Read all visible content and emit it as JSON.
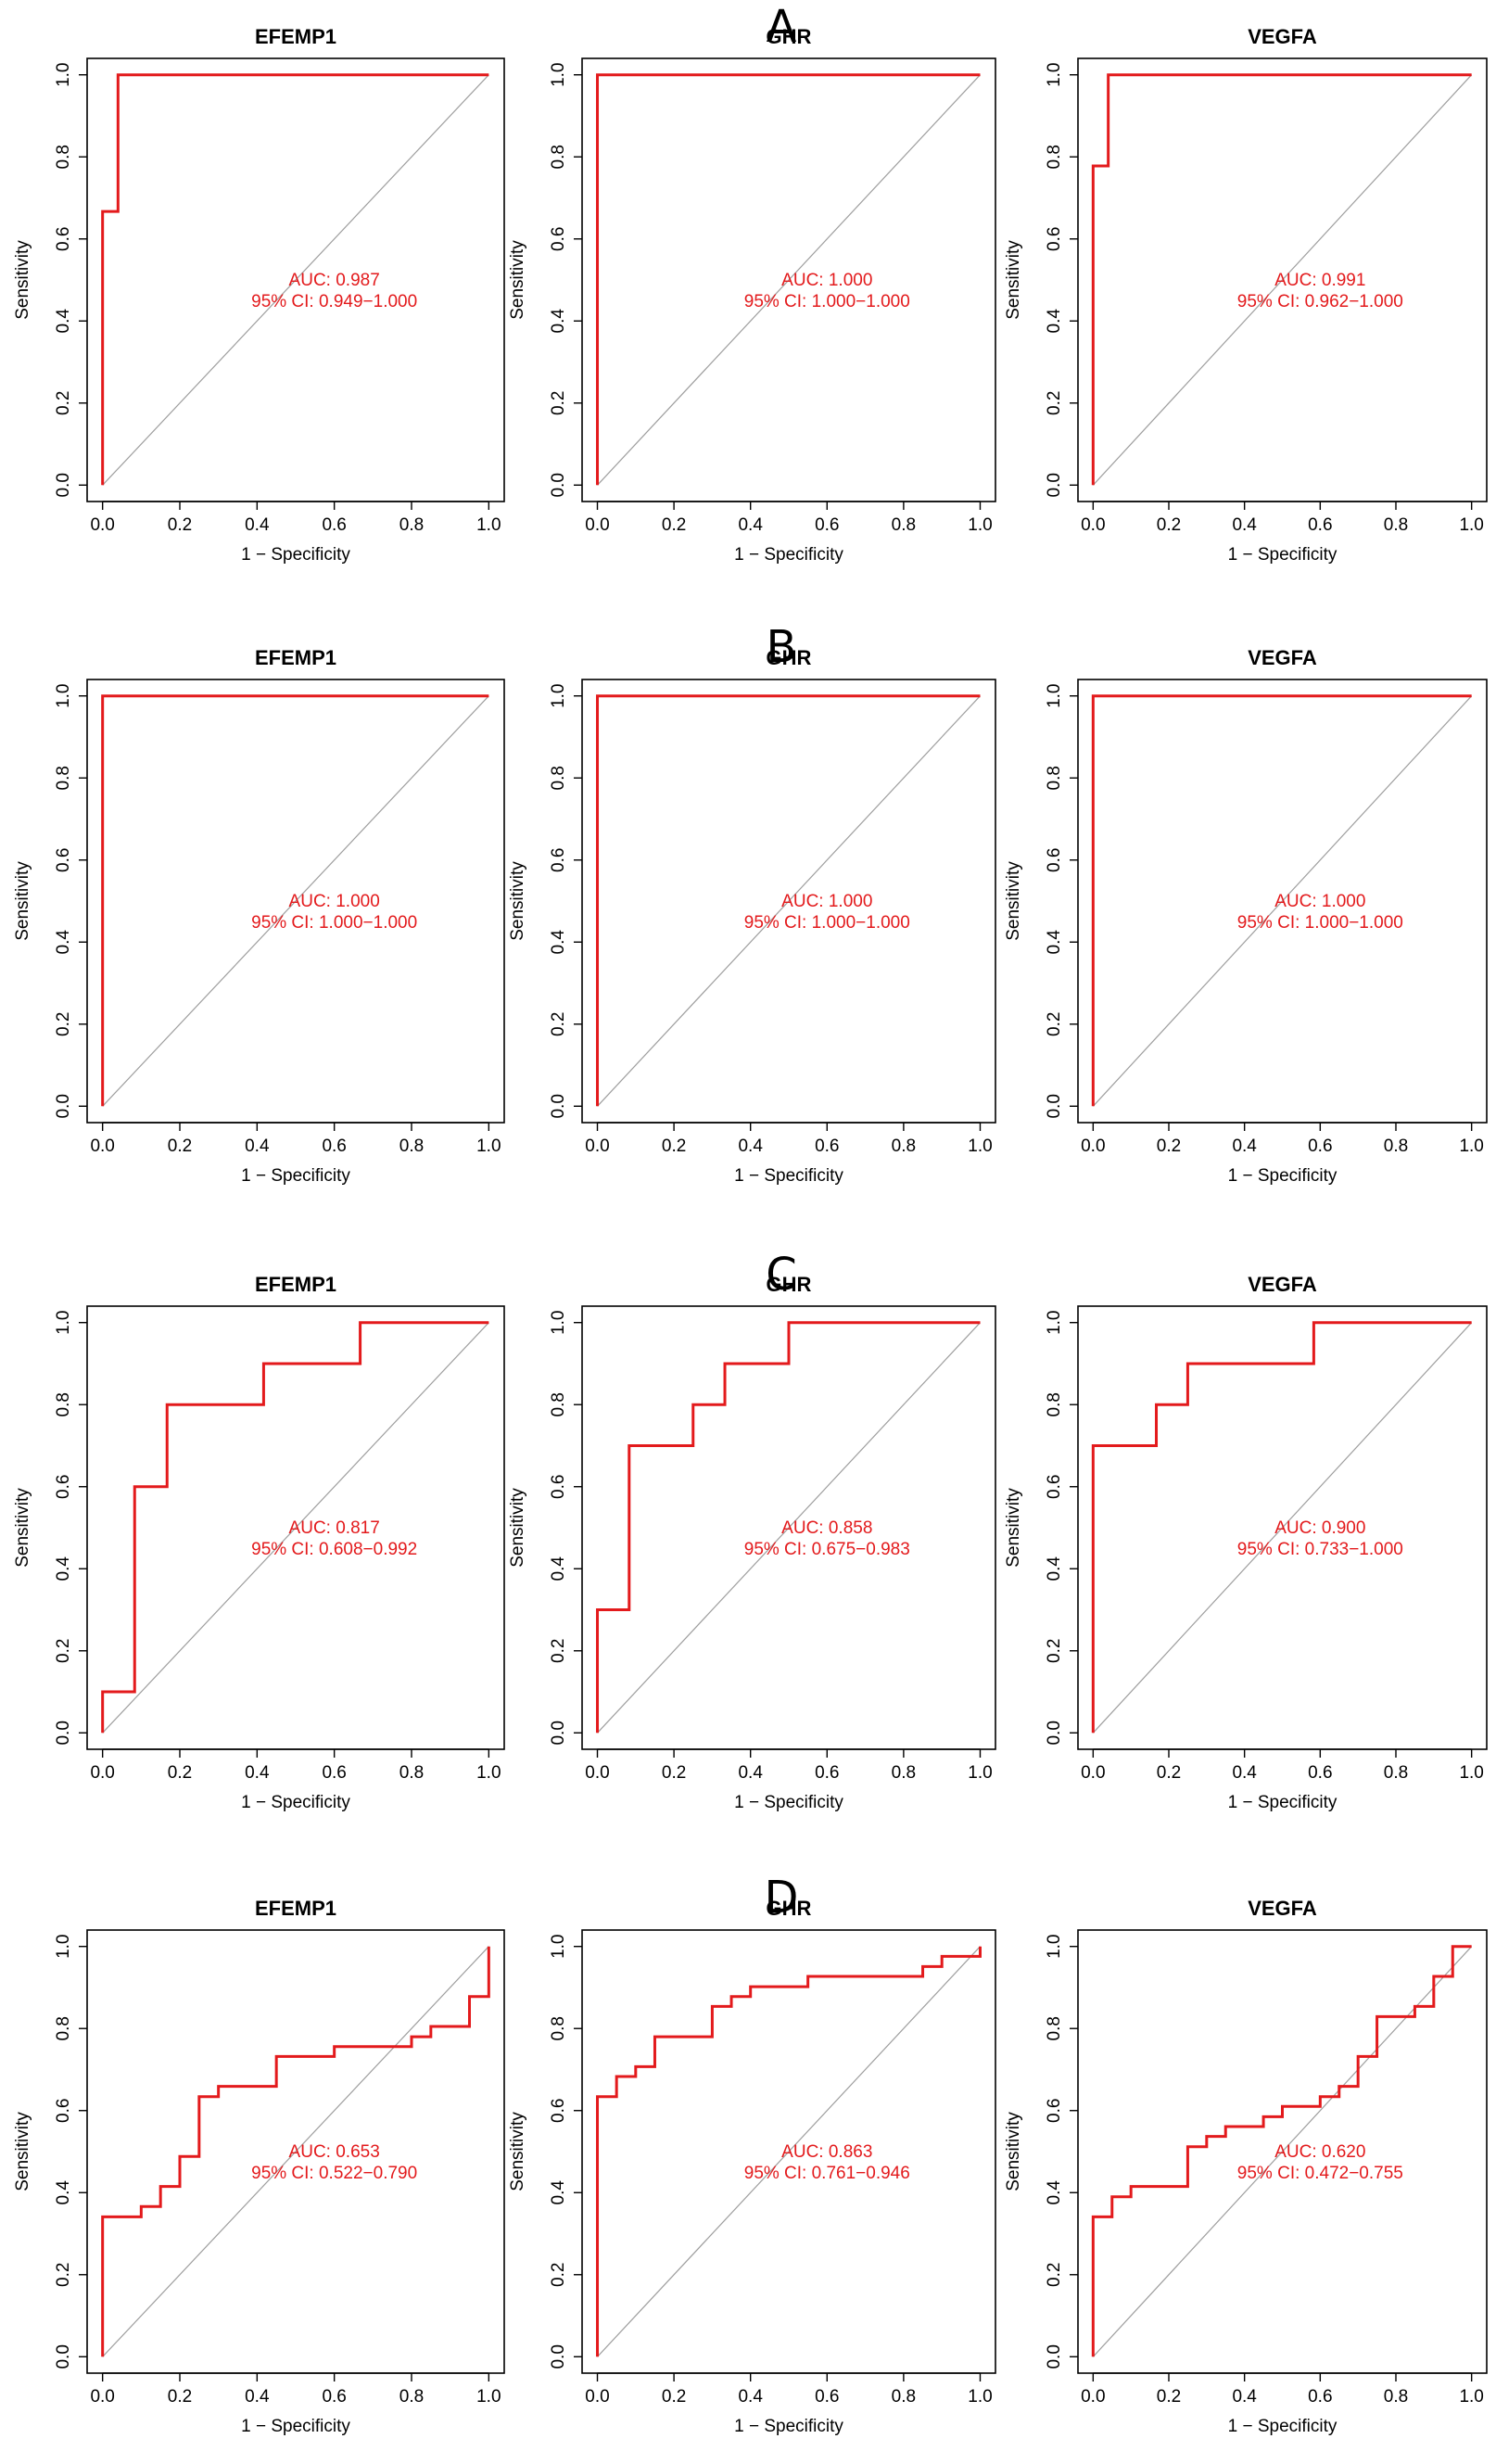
{
  "panels": [
    {
      "letter": "A"
    },
    {
      "letter": "B"
    },
    {
      "letter": "C"
    },
    {
      "letter": "D"
    }
  ],
  "colors": {
    "roc_curve": "#e31a1c",
    "diagonal": "#9e9e9e",
    "axis": "#000000",
    "annotation": "#e31a1c"
  },
  "chart_data": [
    {
      "panel": "A",
      "type": "line",
      "title": "EFEMP1",
      "xlabel": "1 − Specificity",
      "ylabel": "Sensitivity",
      "xlim": [
        0,
        1
      ],
      "ylim": [
        0,
        1
      ],
      "xticks": [
        "0.0",
        "0.2",
        "0.4",
        "0.6",
        "0.8",
        "1.0"
      ],
      "yticks": [
        "0.0",
        "0.2",
        "0.4",
        "0.6",
        "0.8",
        "1.0"
      ],
      "auc_text": "AUC: 0.987",
      "ci_text": "95% CI: 0.949−1.000",
      "roc": {
        "x": [
          0,
          0,
          0.04,
          0.04,
          1
        ],
        "y": [
          0,
          0.667,
          0.667,
          1,
          1
        ]
      }
    },
    {
      "panel": "A",
      "type": "line",
      "title": "GHR",
      "xlabel": "1 − Specificity",
      "ylabel": "Sensitivity",
      "xlim": [
        0,
        1
      ],
      "ylim": [
        0,
        1
      ],
      "xticks": [
        "0.0",
        "0.2",
        "0.4",
        "0.6",
        "0.8",
        "1.0"
      ],
      "yticks": [
        "0.0",
        "0.2",
        "0.4",
        "0.6",
        "0.8",
        "1.0"
      ],
      "auc_text": "AUC: 1.000",
      "ci_text": "95% CI: 1.000−1.000",
      "roc": {
        "x": [
          0,
          0,
          1
        ],
        "y": [
          0,
          1,
          1
        ]
      }
    },
    {
      "panel": "A",
      "type": "line",
      "title": "VEGFA",
      "xlabel": "1 − Specificity",
      "ylabel": "Sensitivity",
      "xlim": [
        0,
        1
      ],
      "ylim": [
        0,
        1
      ],
      "xticks": [
        "0.0",
        "0.2",
        "0.4",
        "0.6",
        "0.8",
        "1.0"
      ],
      "yticks": [
        "0.0",
        "0.2",
        "0.4",
        "0.6",
        "0.8",
        "1.0"
      ],
      "auc_text": "AUC: 0.991",
      "ci_text": "95% CI: 0.962−1.000",
      "roc": {
        "x": [
          0,
          0,
          0.04,
          0.04,
          1
        ],
        "y": [
          0,
          0.778,
          0.778,
          1,
          1
        ]
      }
    },
    {
      "panel": "B",
      "type": "line",
      "title": "EFEMP1",
      "xlabel": "1 − Specificity",
      "ylabel": "Sensitivity",
      "xlim": [
        0,
        1
      ],
      "ylim": [
        0,
        1
      ],
      "xticks": [
        "0.0",
        "0.2",
        "0.4",
        "0.6",
        "0.8",
        "1.0"
      ],
      "yticks": [
        "0.0",
        "0.2",
        "0.4",
        "0.6",
        "0.8",
        "1.0"
      ],
      "auc_text": "AUC: 1.000",
      "ci_text": "95% CI: 1.000−1.000",
      "roc": {
        "x": [
          0,
          0,
          1
        ],
        "y": [
          0,
          1,
          1
        ]
      }
    },
    {
      "panel": "B",
      "type": "line",
      "title": "GHR",
      "xlabel": "1 − Specificity",
      "ylabel": "Sensitivity",
      "xlim": [
        0,
        1
      ],
      "ylim": [
        0,
        1
      ],
      "xticks": [
        "0.0",
        "0.2",
        "0.4",
        "0.6",
        "0.8",
        "1.0"
      ],
      "yticks": [
        "0.0",
        "0.2",
        "0.4",
        "0.6",
        "0.8",
        "1.0"
      ],
      "auc_text": "AUC: 1.000",
      "ci_text": "95% CI: 1.000−1.000",
      "roc": {
        "x": [
          0,
          0,
          1
        ],
        "y": [
          0,
          1,
          1
        ]
      }
    },
    {
      "panel": "B",
      "type": "line",
      "title": "VEGFA",
      "xlabel": "1 − Specificity",
      "ylabel": "Sensitivity",
      "xlim": [
        0,
        1
      ],
      "ylim": [
        0,
        1
      ],
      "xticks": [
        "0.0",
        "0.2",
        "0.4",
        "0.6",
        "0.8",
        "1.0"
      ],
      "yticks": [
        "0.0",
        "0.2",
        "0.4",
        "0.6",
        "0.8",
        "1.0"
      ],
      "auc_text": "AUC: 1.000",
      "ci_text": "95% CI: 1.000−1.000",
      "roc": {
        "x": [
          0,
          0,
          1
        ],
        "y": [
          0,
          1,
          1
        ]
      }
    },
    {
      "panel": "C",
      "type": "line",
      "title": "EFEMP1",
      "xlabel": "1 − Specificity",
      "ylabel": "Sensitivity",
      "xlim": [
        0,
        1
      ],
      "ylim": [
        0,
        1
      ],
      "xticks": [
        "0.0",
        "0.2",
        "0.4",
        "0.6",
        "0.8",
        "1.0"
      ],
      "yticks": [
        "0.0",
        "0.2",
        "0.4",
        "0.6",
        "0.8",
        "1.0"
      ],
      "auc_text": "AUC: 0.817",
      "ci_text": "95% CI: 0.608−0.992",
      "roc": {
        "x": [
          0,
          0,
          0.083,
          0.083,
          0.167,
          0.167,
          0.417,
          0.417,
          0.667,
          0.667,
          1
        ],
        "y": [
          0,
          0.1,
          0.1,
          0.6,
          0.6,
          0.8,
          0.8,
          0.9,
          0.9,
          1,
          1
        ]
      }
    },
    {
      "panel": "C",
      "type": "line",
      "title": "GHR",
      "xlabel": "1 − Specificity",
      "ylabel": "Sensitivity",
      "xlim": [
        0,
        1
      ],
      "ylim": [
        0,
        1
      ],
      "xticks": [
        "0.0",
        "0.2",
        "0.4",
        "0.6",
        "0.8",
        "1.0"
      ],
      "yticks": [
        "0.0",
        "0.2",
        "0.4",
        "0.6",
        "0.8",
        "1.0"
      ],
      "auc_text": "AUC: 0.858",
      "ci_text": "95% CI: 0.675−0.983",
      "roc": {
        "x": [
          0,
          0,
          0.083,
          0.083,
          0.25,
          0.25,
          0.333,
          0.333,
          0.5,
          0.5,
          1
        ],
        "y": [
          0,
          0.3,
          0.3,
          0.7,
          0.7,
          0.8,
          0.8,
          0.9,
          0.9,
          1,
          1
        ]
      }
    },
    {
      "panel": "C",
      "type": "line",
      "title": "VEGFA",
      "xlabel": "1 − Specificity",
      "ylabel": "Sensitivity",
      "xlim": [
        0,
        1
      ],
      "ylim": [
        0,
        1
      ],
      "xticks": [
        "0.0",
        "0.2",
        "0.4",
        "0.6",
        "0.8",
        "1.0"
      ],
      "yticks": [
        "0.0",
        "0.2",
        "0.4",
        "0.6",
        "0.8",
        "1.0"
      ],
      "auc_text": "AUC: 0.900",
      "ci_text": "95% CI: 0.733−1.000",
      "roc": {
        "x": [
          0,
          0,
          0.167,
          0.167,
          0.25,
          0.25,
          0.583,
          0.583,
          1
        ],
        "y": [
          0,
          0.7,
          0.7,
          0.8,
          0.8,
          0.9,
          0.9,
          1,
          1
        ]
      }
    },
    {
      "panel": "D",
      "type": "line",
      "title": "EFEMP1",
      "xlabel": "1 − Specificity",
      "ylabel": "Sensitivity",
      "xlim": [
        0,
        1
      ],
      "ylim": [
        0,
        1
      ],
      "xticks": [
        "0.0",
        "0.2",
        "0.4",
        "0.6",
        "0.8",
        "1.0"
      ],
      "yticks": [
        "0.0",
        "0.2",
        "0.4",
        "0.6",
        "0.8",
        "1.0"
      ],
      "auc_text": "AUC: 0.653",
      "ci_text": "95% CI: 0.522−0.790",
      "roc": {
        "x": [
          0,
          0,
          0.1,
          0.1,
          0.15,
          0.15,
          0.2,
          0.2,
          0.25,
          0.25,
          0.3,
          0.3,
          0.45,
          0.45,
          0.6,
          0.6,
          0.8,
          0.8,
          0.85,
          0.85,
          0.95,
          0.95,
          1,
          1
        ],
        "y": [
          0,
          0.341,
          0.341,
          0.366,
          0.366,
          0.415,
          0.415,
          0.488,
          0.488,
          0.634,
          0.634,
          0.659,
          0.659,
          0.732,
          0.732,
          0.756,
          0.756,
          0.78,
          0.78,
          0.805,
          0.805,
          0.878,
          0.878,
          1
        ]
      }
    },
    {
      "panel": "D",
      "type": "line",
      "title": "GHR",
      "xlabel": "1 − Specificity",
      "ylabel": "Sensitivity",
      "xlim": [
        0,
        1
      ],
      "ylim": [
        0,
        1
      ],
      "xticks": [
        "0.0",
        "0.2",
        "0.4",
        "0.6",
        "0.8",
        "1.0"
      ],
      "yticks": [
        "0.0",
        "0.2",
        "0.4",
        "0.6",
        "0.8",
        "1.0"
      ],
      "auc_text": "AUC: 0.863",
      "ci_text": "95% CI: 0.761−0.946",
      "roc": {
        "x": [
          0,
          0,
          0.05,
          0.05,
          0.1,
          0.1,
          0.15,
          0.15,
          0.3,
          0.3,
          0.35,
          0.35,
          0.4,
          0.4,
          0.55,
          0.55,
          0.85,
          0.85,
          0.9,
          0.9,
          1,
          1
        ],
        "y": [
          0,
          0.634,
          0.634,
          0.683,
          0.683,
          0.707,
          0.707,
          0.78,
          0.78,
          0.854,
          0.854,
          0.878,
          0.878,
          0.902,
          0.902,
          0.927,
          0.927,
          0.951,
          0.951,
          0.976,
          0.976,
          1
        ]
      }
    },
    {
      "panel": "D",
      "type": "line",
      "title": "VEGFA",
      "xlabel": "1 − Specificity",
      "ylabel": "Sensitivity",
      "xlim": [
        0,
        1
      ],
      "ylim": [
        0,
        1
      ],
      "xticks": [
        "0.0",
        "0.2",
        "0.4",
        "0.6",
        "0.8",
        "1.0"
      ],
      "yticks": [
        "0.0",
        "0.2",
        "0.4",
        "0.6",
        "0.8",
        "1.0"
      ],
      "auc_text": "AUC: 0.620",
      "ci_text": "95% CI: 0.472−0.755",
      "roc": {
        "x": [
          0,
          0,
          0.05,
          0.05,
          0.1,
          0.1,
          0.25,
          0.25,
          0.3,
          0.3,
          0.35,
          0.35,
          0.45,
          0.45,
          0.5,
          0.5,
          0.6,
          0.6,
          0.65,
          0.65,
          0.7,
          0.7,
          0.75,
          0.75,
          0.85,
          0.85,
          0.9,
          0.9,
          0.95,
          0.95,
          1
        ],
        "y": [
          0,
          0.341,
          0.341,
          0.39,
          0.39,
          0.415,
          0.415,
          0.512,
          0.512,
          0.537,
          0.537,
          0.561,
          0.561,
          0.585,
          0.585,
          0.61,
          0.61,
          0.634,
          0.634,
          0.659,
          0.659,
          0.732,
          0.732,
          0.829,
          0.829,
          0.854,
          0.854,
          0.927,
          0.927,
          1,
          1
        ]
      }
    }
  ]
}
